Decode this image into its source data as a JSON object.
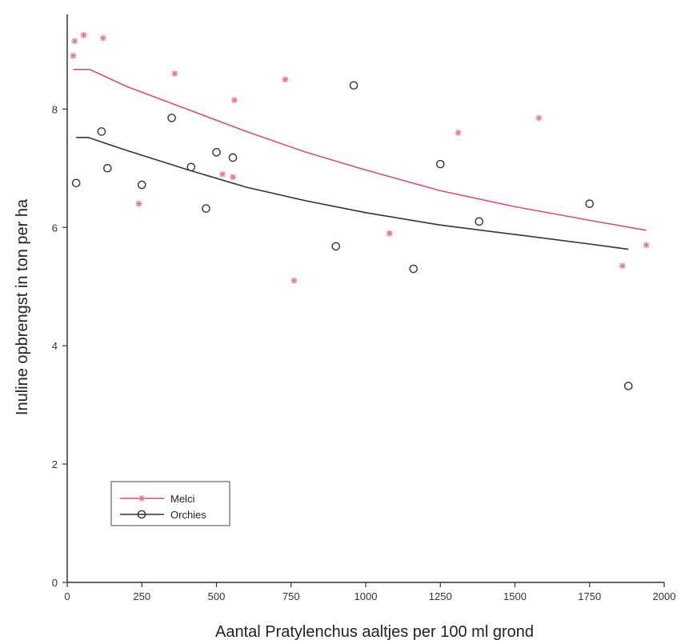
{
  "chart_data": {
    "type": "scatter",
    "title": "",
    "xlabel": "Aantal Pratylenchus aaltjes per 100 ml grond",
    "ylabel": "Inuline opbrengst in ton per ha",
    "xlim": [
      0,
      2000
    ],
    "ylim": [
      0,
      9.6
    ],
    "x_ticks": [
      0,
      250,
      500,
      750,
      1000,
      1250,
      1500,
      1750,
      2000
    ],
    "y_ticks": [
      0,
      2,
      4,
      6,
      8
    ],
    "grid": false,
    "legend_position": "bottom-left",
    "series": [
      {
        "name": "Melci",
        "marker": "star",
        "color": "#e07b8a",
        "points": [
          {
            "x": 20,
            "y": 8.9
          },
          {
            "x": 25,
            "y": 9.15
          },
          {
            "x": 55,
            "y": 9.25
          },
          {
            "x": 120,
            "y": 9.2
          },
          {
            "x": 240,
            "y": 6.4
          },
          {
            "x": 360,
            "y": 8.6
          },
          {
            "x": 520,
            "y": 6.9
          },
          {
            "x": 555,
            "y": 6.85
          },
          {
            "x": 560,
            "y": 8.15
          },
          {
            "x": 730,
            "y": 8.5
          },
          {
            "x": 760,
            "y": 5.1
          },
          {
            "x": 1080,
            "y": 5.9
          },
          {
            "x": 1310,
            "y": 7.6
          },
          {
            "x": 1580,
            "y": 7.85
          },
          {
            "x": 1860,
            "y": 5.35
          },
          {
            "x": 1940,
            "y": 5.7
          }
        ],
        "fit": {
          "color": "#d94f6a",
          "x": [
            20,
            75,
            200,
            400,
            600,
            800,
            1000,
            1250,
            1500,
            1750,
            1940
          ],
          "y": [
            8.67,
            8.67,
            8.38,
            8.0,
            7.62,
            7.27,
            6.97,
            6.62,
            6.35,
            6.12,
            5.95
          ]
        }
      },
      {
        "name": "Orchies",
        "marker": "circle",
        "color": "#333333",
        "points": [
          {
            "x": 30,
            "y": 6.75
          },
          {
            "x": 115,
            "y": 7.62
          },
          {
            "x": 135,
            "y": 7.0
          },
          {
            "x": 250,
            "y": 6.72
          },
          {
            "x": 350,
            "y": 7.85
          },
          {
            "x": 415,
            "y": 7.02
          },
          {
            "x": 465,
            "y": 6.32
          },
          {
            "x": 500,
            "y": 7.27
          },
          {
            "x": 555,
            "y": 7.18
          },
          {
            "x": 900,
            "y": 5.68
          },
          {
            "x": 960,
            "y": 8.4
          },
          {
            "x": 1160,
            "y": 5.3
          },
          {
            "x": 1250,
            "y": 7.07
          },
          {
            "x": 1380,
            "y": 6.1
          },
          {
            "x": 1750,
            "y": 6.4
          },
          {
            "x": 1880,
            "y": 3.32
          }
        ],
        "fit": {
          "color": "#333333",
          "x": [
            30,
            70,
            200,
            400,
            600,
            800,
            1000,
            1250,
            1500,
            1750,
            1880
          ],
          "y": [
            7.52,
            7.52,
            7.3,
            6.98,
            6.68,
            6.45,
            6.25,
            6.04,
            5.88,
            5.72,
            5.63
          ]
        }
      }
    ]
  }
}
